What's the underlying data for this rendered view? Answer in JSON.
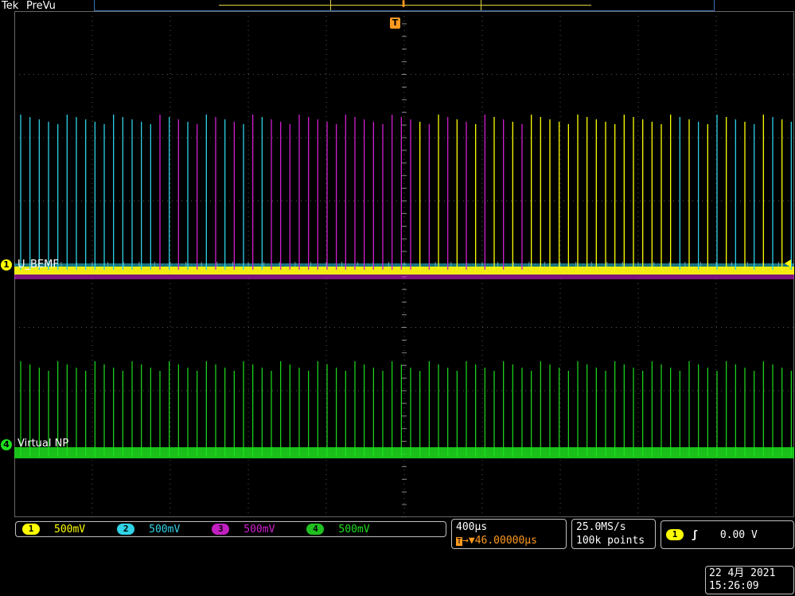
{
  "header": {
    "brand": "Tek",
    "mode": "PreVu"
  },
  "trigger_marker": "T",
  "traces": {
    "ch1": {
      "number": "1",
      "label": "U_BEMF",
      "color": "#ffff00"
    },
    "ch2": {
      "number": "2",
      "color": "#2fd2e6"
    },
    "ch3": {
      "number": "3",
      "color": "#d21fd2"
    },
    "ch4": {
      "number": "4",
      "label": "Virtual NP",
      "color": "#1fe01f"
    }
  },
  "channels": [
    {
      "number": "1",
      "scale": "500mV",
      "color": "#ffff00"
    },
    {
      "number": "2",
      "scale": "500mV",
      "color": "#2fd2e6"
    },
    {
      "number": "3",
      "scale": "500mV",
      "color": "#d21fd2"
    },
    {
      "number": "4",
      "scale": "500mV",
      "color": "#1fe01f"
    }
  ],
  "timebase": {
    "scale": "400µs",
    "trigger_position": "46.00000µs",
    "trigger_icon": "T",
    "trigger_arrow": "→▼"
  },
  "acquisition": {
    "sample_rate": "25.0MS/s",
    "record_length": "100k points"
  },
  "trigger": {
    "source": "1",
    "slope_icon": "rising-edge-icon",
    "slope_glyph": "ʃ",
    "level": "0.00 V"
  },
  "datetime": {
    "date": "22 4月  2021",
    "time": "15:26:09"
  },
  "colors": {
    "grid": "#555555",
    "trigger": "#ff9a1f",
    "frame": "#3d6fb0"
  }
}
